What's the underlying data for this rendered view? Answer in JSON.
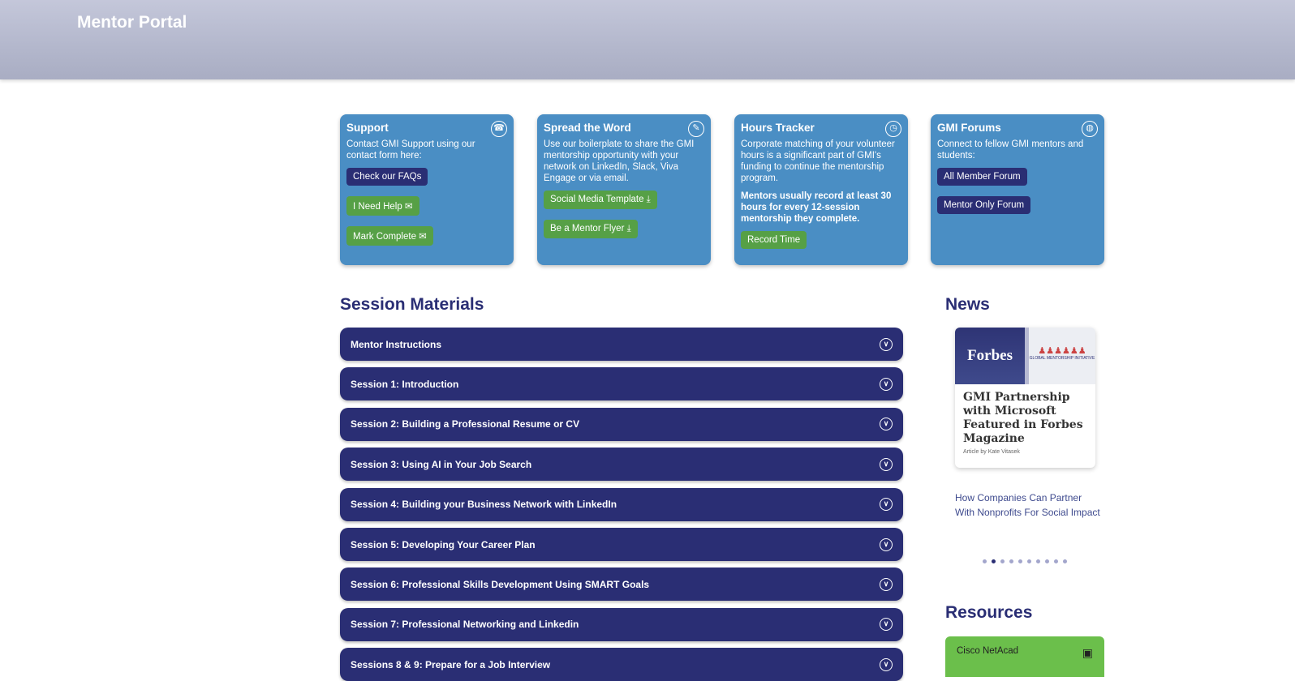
{
  "header": {
    "title": "Mentor Portal"
  },
  "cards": [
    {
      "title": "Support",
      "icon": "support-icon",
      "text": "Contact GMI Support using our contact form here:",
      "buttons": [
        {
          "label": "Check our FAQs",
          "style": "navy"
        },
        {
          "label": "I Need Help ✉",
          "style": "green"
        },
        {
          "label": "Mark Complete ✉",
          "style": "green"
        }
      ]
    },
    {
      "title": "Spread the Word",
      "icon": "share-icon",
      "text": "Use our boilerplate to share the GMI mentorship opportunity with your network on LinkedIn, Slack, Viva Engage or via email.",
      "buttons": [
        {
          "label": "Social Media Template ⤓",
          "style": "green"
        },
        {
          "label": "Be a Mentor Flyer ⤓",
          "style": "green"
        }
      ]
    },
    {
      "title": "Hours Tracker",
      "icon": "clock-icon",
      "text": "Corporate matching of your volunteer hours is a significant part of GMI's funding to continue the mentorship program.",
      "bold": "Mentors usually record at least 30 hours for every 12-session mentorship they complete.",
      "buttons": [
        {
          "label": "Record Time",
          "style": "green"
        }
      ]
    },
    {
      "title": "GMI Forums",
      "icon": "globe-icon",
      "text": "Connect to fellow GMI mentors and students:",
      "buttons": [
        {
          "label": "All Member Forum",
          "style": "navy"
        },
        {
          "label": "Mentor Only Forum",
          "style": "navy"
        }
      ]
    }
  ],
  "session_materials": {
    "title": "Session Materials",
    "items": [
      "Mentor Instructions",
      "Session 1: Introduction",
      "Session 2: Building a Professional Resume or CV",
      "Session 3: Using AI in Your Job Search",
      "Session 4: Building your Business Network with LinkedIn",
      "Session 5: Developing Your Career Plan",
      "Session 6: Professional Skills Development Using SMART Goals",
      "Session 7: Professional Networking and Linkedin",
      "Sessions 8 & 9: Prepare for a Job Interview"
    ]
  },
  "news": {
    "title": "News",
    "card": {
      "brand": "Forbes",
      "logo_text": "GLOBAL MENTORSHIP INITIATIVE",
      "headline": "GMI Partnership with Microsoft Featured in Forbes Magazine",
      "byline": "Article by Kate Vitasek"
    },
    "link": "How Companies Can Partner With Nonprofits For Social Impact",
    "slide_count": 10,
    "active_slide": 2
  },
  "resources": {
    "title": "Resources",
    "items": [
      {
        "label": "Cisco NetAcad",
        "icon": "laptop-icon"
      }
    ]
  }
}
